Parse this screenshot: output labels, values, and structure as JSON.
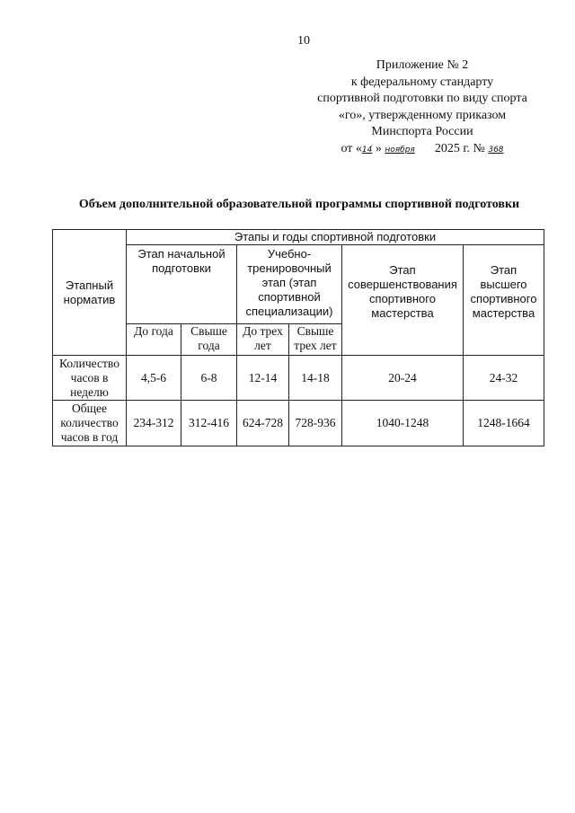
{
  "page_number": "10",
  "appendix": {
    "line1": "Приложение № 2",
    "line2": "к федеральному стандарту",
    "line3": "спортивной подготовки по виду спорта",
    "line4": "«го», утвержденному приказом",
    "line5": "Минспорта России",
    "date_prefix": "от «",
    "day": "14",
    "date_mid": "»",
    "month": "ноября",
    "year": "2025 г. №",
    "number": "368"
  },
  "title": "Объем дополнительной образовательной программы спортивной подготовки",
  "table": {
    "header_norm": "Этапный норматив",
    "header_stages": "Этапы и годы спортивной подготовки",
    "stage_initial": "Этап начальной подготовки",
    "stage_training": "Учебно-тренировочный этап (этап спортивной специализации)",
    "stage_improvement": "Этап совершенствования спортивного мастерства",
    "stage_higher": "Этап высшего спортивного мастерства",
    "sub": [
      "До года",
      "Свыше года",
      "До трех лет",
      "Свыше трех лет"
    ],
    "rows": [
      {
        "label": "Количество часов в неделю",
        "values": [
          "4,5-6",
          "6-8",
          "12-14",
          "14-18",
          "20-24",
          "24-32"
        ]
      },
      {
        "label": "Общее количество часов в год",
        "values": [
          "234-312",
          "312-416",
          "624-728",
          "728-936",
          "1040-1248",
          "1248-1664"
        ]
      }
    ]
  }
}
